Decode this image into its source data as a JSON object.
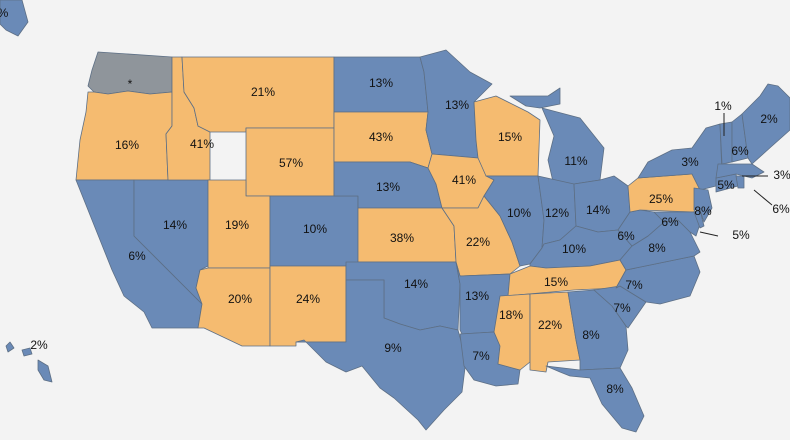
{
  "colors": {
    "blue": "#6a8ab7",
    "orange": "#f5bb70",
    "gray": "#8f959b"
  },
  "states": [
    {
      "id": "WA",
      "label": "*",
      "fill": "gray"
    },
    {
      "id": "OR",
      "label": "16%",
      "fill": "orange"
    },
    {
      "id": "CA",
      "label": "6%",
      "fill": "blue"
    },
    {
      "id": "NV",
      "label": "14%",
      "fill": "blue"
    },
    {
      "id": "ID",
      "label": "41%",
      "fill": "orange"
    },
    {
      "id": "MT",
      "label": "21%",
      "fill": "orange"
    },
    {
      "id": "WY",
      "label": "57%",
      "fill": "orange"
    },
    {
      "id": "UT",
      "label": "19%",
      "fill": "orange"
    },
    {
      "id": "AZ",
      "label": "20%",
      "fill": "orange"
    },
    {
      "id": "CO",
      "label": "10%",
      "fill": "blue"
    },
    {
      "id": "NM",
      "label": "24%",
      "fill": "orange"
    },
    {
      "id": "ND",
      "label": "13%",
      "fill": "blue"
    },
    {
      "id": "SD",
      "label": "43%",
      "fill": "orange"
    },
    {
      "id": "NE",
      "label": "13%",
      "fill": "blue"
    },
    {
      "id": "KS",
      "label": "38%",
      "fill": "orange"
    },
    {
      "id": "OK",
      "label": "14%",
      "fill": "blue"
    },
    {
      "id": "TX",
      "label": "9%",
      "fill": "blue"
    },
    {
      "id": "MN",
      "label": "13%",
      "fill": "blue"
    },
    {
      "id": "IA",
      "label": "41%",
      "fill": "orange"
    },
    {
      "id": "MO",
      "label": "22%",
      "fill": "orange"
    },
    {
      "id": "AR",
      "label": "13%",
      "fill": "blue"
    },
    {
      "id": "LA",
      "label": "7%",
      "fill": "blue"
    },
    {
      "id": "WI",
      "label": "15%",
      "fill": "orange"
    },
    {
      "id": "IL",
      "label": "10%",
      "fill": "blue"
    },
    {
      "id": "MI",
      "label": "11%",
      "fill": "blue"
    },
    {
      "id": "IN",
      "label": "12%",
      "fill": "blue"
    },
    {
      "id": "OH",
      "label": "14%",
      "fill": "blue"
    },
    {
      "id": "KY",
      "label": "10%",
      "fill": "blue"
    },
    {
      "id": "TN",
      "label": "15%",
      "fill": "orange"
    },
    {
      "id": "MS",
      "label": "18%",
      "fill": "orange"
    },
    {
      "id": "AL",
      "label": "22%",
      "fill": "orange"
    },
    {
      "id": "GA",
      "label": "8%",
      "fill": "blue"
    },
    {
      "id": "FL",
      "label": "8%",
      "fill": "blue"
    },
    {
      "id": "SC",
      "label": "7%",
      "fill": "blue"
    },
    {
      "id": "NC",
      "label": "7%",
      "fill": "blue"
    },
    {
      "id": "VA",
      "label": "8%",
      "fill": "blue"
    },
    {
      "id": "WV",
      "label": "6%",
      "fill": "blue"
    },
    {
      "id": "PA",
      "label": "25%",
      "fill": "orange"
    },
    {
      "id": "NY",
      "label": "3%",
      "fill": "blue"
    },
    {
      "id": "MD",
      "label": "6%",
      "fill": "blue"
    },
    {
      "id": "DE",
      "label": "5%",
      "fill": "blue"
    },
    {
      "id": "NJ",
      "label": "8%",
      "fill": "blue"
    },
    {
      "id": "CT",
      "label": "5%",
      "fill": "blue"
    },
    {
      "id": "RI",
      "label": "6%",
      "fill": "blue"
    },
    {
      "id": "MA",
      "label": "3%",
      "fill": "blue"
    },
    {
      "id": "VT",
      "label": "1%",
      "fill": "blue"
    },
    {
      "id": "NH",
      "label": "6%",
      "fill": "blue"
    },
    {
      "id": "ME",
      "label": "2%",
      "fill": "blue"
    },
    {
      "id": "AK",
      "label": "%",
      "fill": "blue"
    },
    {
      "id": "HI",
      "label": "2%",
      "fill": "blue"
    }
  ]
}
